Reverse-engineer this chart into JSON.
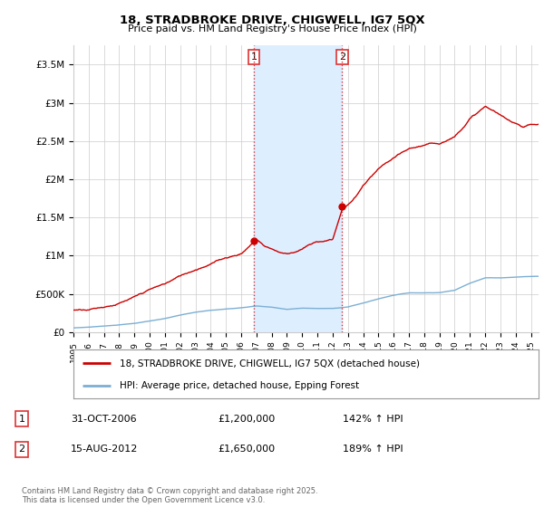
{
  "title": "18, STRADBROKE DRIVE, CHIGWELL, IG7 5QX",
  "subtitle": "Price paid vs. HM Land Registry's House Price Index (HPI)",
  "legend_line1": "18, STRADBROKE DRIVE, CHIGWELL, IG7 5QX (detached house)",
  "legend_line2": "HPI: Average price, detached house, Epping Forest",
  "annotation1_label": "1",
  "annotation1_date": "31-OCT-2006",
  "annotation1_price": "£1,200,000",
  "annotation1_hpi": "142% ↑ HPI",
  "annotation2_label": "2",
  "annotation2_date": "15-AUG-2012",
  "annotation2_price": "£1,650,000",
  "annotation2_hpi": "189% ↑ HPI",
  "footer": "Contains HM Land Registry data © Crown copyright and database right 2025.\nThis data is licensed under the Open Government Licence v3.0.",
  "marker1_x": 2006.83,
  "marker1_y": 1200000,
  "marker2_x": 2012.62,
  "marker2_y": 1650000,
  "vline1_x": 2006.83,
  "vline2_x": 2012.62,
  "shade_xmin": 2006.83,
  "shade_xmax": 2012.62,
  "xmin": 1995,
  "xmax": 2025.5,
  "ymin": 0,
  "ymax": 3750000,
  "yticks": [
    0,
    500000,
    1000000,
    1500000,
    2000000,
    2500000,
    3000000,
    3500000
  ],
  "ytick_labels": [
    "£0",
    "£500K",
    "£1M",
    "£1.5M",
    "£2M",
    "£2.5M",
    "£3M",
    "£3.5M"
  ],
  "red_line_color": "#cc0000",
  "blue_line_color": "#7bafd4",
  "shade_color": "#ddeeff",
  "vline_color": "#dd3333",
  "grid_color": "#cccccc",
  "background_color": "#ffffff",
  "hpi_base": {
    "1995": 55000,
    "1996": 65000,
    "1997": 80000,
    "1998": 95000,
    "1999": 115000,
    "2000": 145000,
    "2001": 175000,
    "2002": 220000,
    "2003": 255000,
    "2004": 285000,
    "2005": 300000,
    "2006": 315000,
    "2007": 340000,
    "2008": 325000,
    "2009": 295000,
    "2010": 310000,
    "2011": 305000,
    "2012": 305000,
    "2013": 325000,
    "2014": 375000,
    "2015": 430000,
    "2016": 480000,
    "2017": 510000,
    "2018": 510000,
    "2019": 515000,
    "2020": 545000,
    "2021": 640000,
    "2022": 710000,
    "2023": 710000,
    "2024": 720000,
    "2025": 730000
  },
  "red_base": {
    "1995": 290000,
    "1996": 315000,
    "1997": 355000,
    "1998": 405000,
    "1999": 470000,
    "2000": 560000,
    "2001": 630000,
    "2002": 730000,
    "2003": 820000,
    "2004": 910000,
    "2005": 990000,
    "2006": 1050000,
    "2006.83": 1200000,
    "2007": 1240000,
    "2007.5": 1160000,
    "2008": 1120000,
    "2008.5": 1080000,
    "2009": 1060000,
    "2009.5": 1090000,
    "2010": 1130000,
    "2010.5": 1180000,
    "2011": 1210000,
    "2011.5": 1230000,
    "2012": 1250000,
    "2012.62": 1650000,
    "2013": 1700000,
    "2013.5": 1800000,
    "2014": 1950000,
    "2015": 2150000,
    "2016": 2280000,
    "2017": 2380000,
    "2018": 2430000,
    "2019": 2450000,
    "2020": 2550000,
    "2021": 2800000,
    "2022": 2950000,
    "2022.5": 2900000,
    "2023": 2830000,
    "2023.5": 2760000,
    "2024": 2730000,
    "2024.5": 2690000,
    "2025": 2720000
  }
}
